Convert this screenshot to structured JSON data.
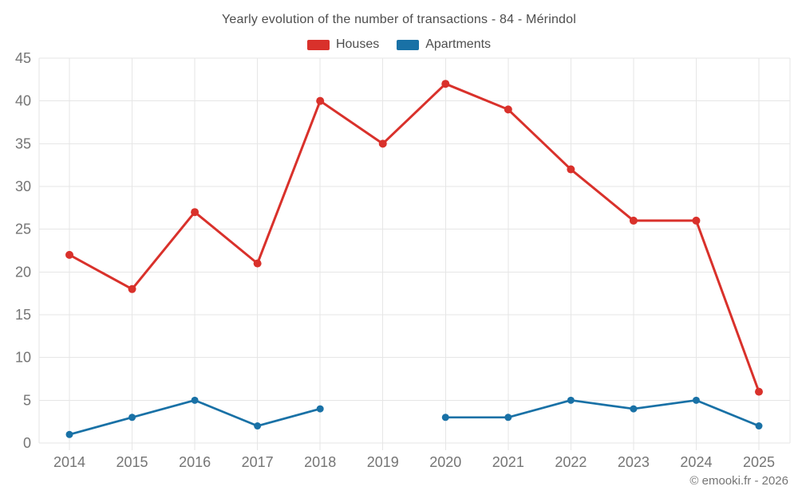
{
  "chart_data": {
    "type": "line",
    "title": "Yearly evolution of the number of transactions - 84 - Mérindol",
    "categories": [
      "2014",
      "2015",
      "2016",
      "2017",
      "2018",
      "2019",
      "2020",
      "2021",
      "2022",
      "2023",
      "2024",
      "2025"
    ],
    "series": [
      {
        "name": "Houses",
        "color": "#d9312b",
        "marker_radius": 5,
        "line_width": 3,
        "values": [
          22,
          18,
          27,
          21,
          40,
          35,
          42,
          39,
          32,
          26,
          26,
          6
        ]
      },
      {
        "name": "Apartments",
        "color": "#1971a6",
        "marker_radius": 4.5,
        "line_width": 2.7,
        "values": [
          1,
          3,
          5,
          2,
          4,
          null,
          3,
          3,
          5,
          4,
          5,
          2
        ]
      }
    ],
    "xlabel": "",
    "ylabel": "",
    "ylim": [
      0,
      45
    ],
    "ytick_step": 5,
    "grid": true,
    "legend_position": "top"
  },
  "footer": {
    "copyright": "© emooki.fr - 2026"
  },
  "colors": {
    "background": "#ffffff",
    "gridline": "#e6e6e6",
    "tick_label": "#757575",
    "title_text": "#4d4d4d",
    "houses": "#d9312b",
    "apartments": "#1971a6"
  }
}
